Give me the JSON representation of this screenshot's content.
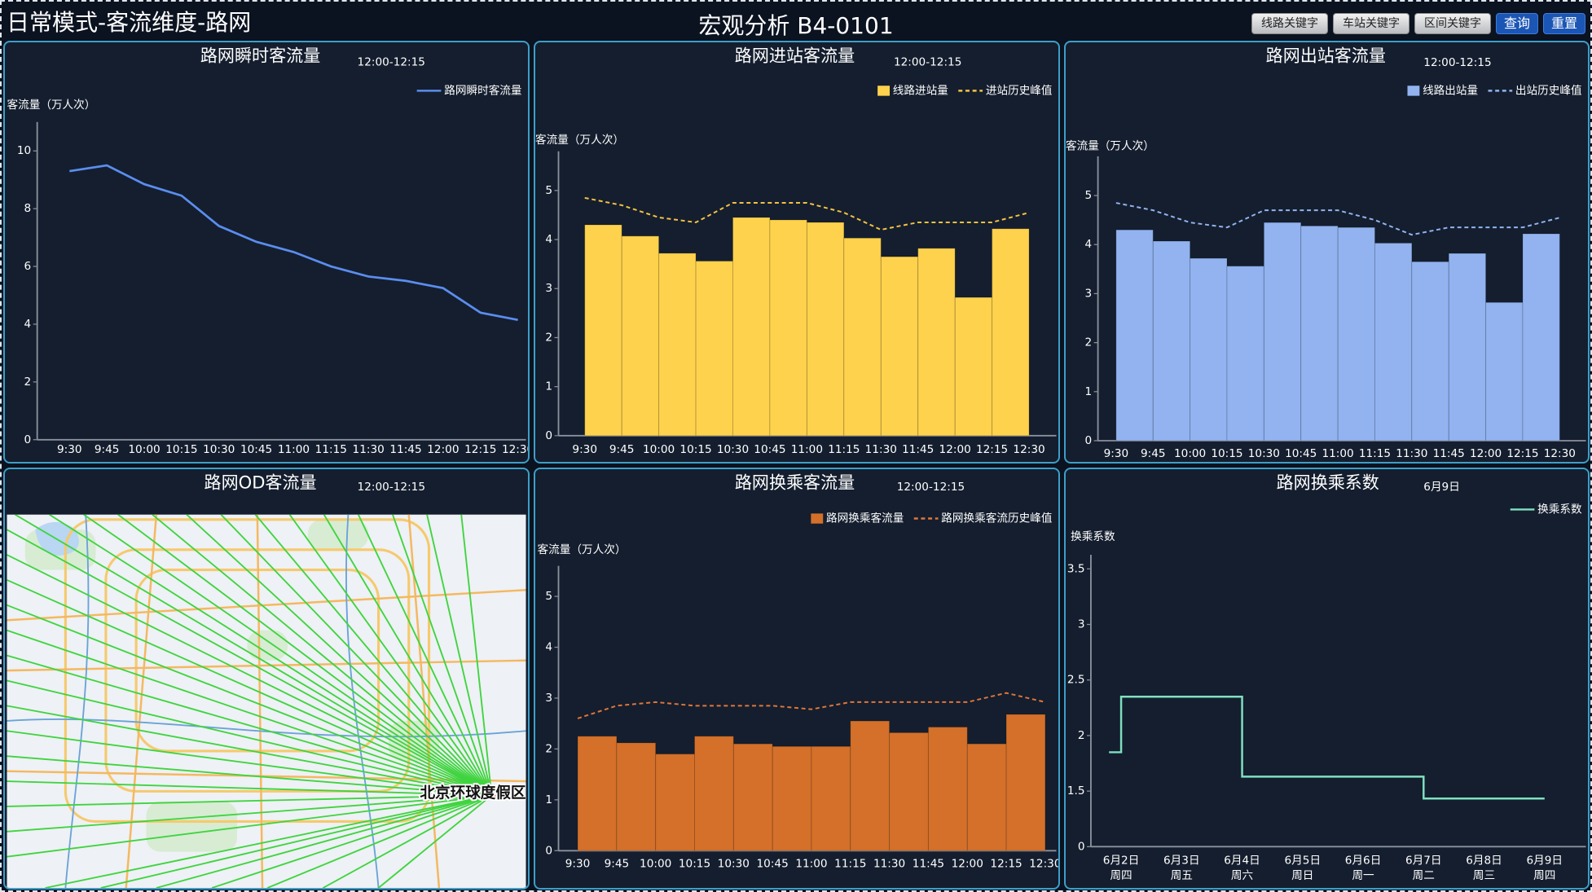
{
  "header": {
    "title": "日常模式-客流维度-路网",
    "center_title": "宏观分析 B4-0101",
    "buttons": [
      "线路关键字",
      "车站关键字",
      "区间关键字",
      "查询",
      "重置"
    ]
  },
  "chart_data": [
    {
      "type": "line",
      "title": "路网瞬时客流量",
      "subtitle": "12:00-12:15",
      "y_label": "客流量（万人次）",
      "categories": [
        "9:30",
        "9:45",
        "10:00",
        "10:15",
        "10:30",
        "10:45",
        "11:00",
        "11:15",
        "11:30",
        "11:45",
        "12:00",
        "12:15",
        "12:30"
      ],
      "series": [
        {
          "name": "路网瞬时客流量",
          "color": "#5b8def",
          "kind": "line",
          "values": [
            9.3,
            9.5,
            8.85,
            8.45,
            7.4,
            6.85,
            6.5,
            6.0,
            5.65,
            5.5,
            5.25,
            4.4,
            4.15
          ]
        }
      ],
      "ylim": [
        0,
        11
      ],
      "yticks": [
        0,
        2,
        4,
        6,
        8,
        10
      ],
      "legend": "upper right"
    },
    {
      "type": "bar",
      "title": "路网进站客流量",
      "subtitle": "12:00-12:15",
      "y_label": "客流量（万人次）",
      "categories": [
        "9:30",
        "9:45",
        "10:00",
        "10:15",
        "10:30",
        "10:45",
        "11:00",
        "11:15",
        "11:30",
        "11:45",
        "12:00",
        "12:15",
        "12:30"
      ],
      "series": [
        {
          "name": "线路进站量",
          "color": "#ffd24d",
          "kind": "bar",
          "values": [
            4.3,
            4.07,
            3.72,
            3.56,
            4.45,
            4.4,
            4.35,
            4.03,
            3.65,
            3.82,
            2.82,
            4.22,
            null
          ]
        },
        {
          "name": "进站历史峰值",
          "color": "#f5c242",
          "kind": "line",
          "dashed": true,
          "values": [
            4.85,
            4.7,
            4.45,
            4.35,
            4.75,
            4.75,
            4.75,
            4.55,
            4.2,
            4.35,
            4.35,
            4.35,
            4.55
          ]
        }
      ],
      "ylim": [
        0,
        5.8
      ],
      "yticks": [
        0,
        1,
        2,
        3,
        4,
        5
      ],
      "legend": "upper right"
    },
    {
      "type": "bar",
      "title": "路网出站客流量",
      "subtitle": "12:00-12:15",
      "y_label": "客流量（万人次）",
      "categories": [
        "9:30",
        "9:45",
        "10:00",
        "10:15",
        "10:30",
        "10:45",
        "11:00",
        "11:15",
        "11:30",
        "11:45",
        "12:00",
        "12:15",
        "12:30"
      ],
      "series": [
        {
          "name": "线路出站量",
          "color": "#92b3f0",
          "kind": "bar",
          "values": [
            4.3,
            4.07,
            3.72,
            3.56,
            4.45,
            4.38,
            4.35,
            4.03,
            3.65,
            3.82,
            2.82,
            4.22,
            null
          ]
        },
        {
          "name": "出站历史峰值",
          "color": "#92b3f0",
          "kind": "line",
          "dashed": true,
          "values": [
            4.85,
            4.7,
            4.45,
            4.35,
            4.7,
            4.7,
            4.7,
            4.5,
            4.2,
            4.35,
            4.35,
            4.35,
            4.55
          ]
        }
      ],
      "ylim": [
        0,
        5.8
      ],
      "yticks": [
        0,
        1,
        2,
        3,
        4,
        5
      ],
      "legend": "upper right"
    },
    {
      "type": "map",
      "title": "路网OD客流量",
      "subtitle": "12:00-12:15",
      "labels": [
        "北京环球度假区"
      ]
    },
    {
      "type": "bar",
      "title": "路网换乘客流量",
      "subtitle": "12:00-12:15",
      "y_label": "客流量（万人次）",
      "categories": [
        "9:30",
        "9:45",
        "10:00",
        "10:15",
        "10:30",
        "10:45",
        "11:00",
        "11:15",
        "11:30",
        "11:45",
        "12:00",
        "12:15",
        "12:30"
      ],
      "series": [
        {
          "name": "路网换乘客流量",
          "color": "#d4702a",
          "kind": "bar",
          "values": [
            2.25,
            2.12,
            1.9,
            2.25,
            2.1,
            2.05,
            2.05,
            2.55,
            2.32,
            2.43,
            2.1,
            2.68,
            null
          ]
        },
        {
          "name": "路网换乘客流历史峰值",
          "color": "#e0763a",
          "kind": "line",
          "dashed": true,
          "values": [
            2.6,
            2.85,
            2.92,
            2.85,
            2.85,
            2.85,
            2.78,
            2.92,
            2.92,
            2.92,
            2.92,
            3.1,
            2.92
          ]
        }
      ],
      "ylim": [
        0,
        5.6
      ],
      "yticks": [
        0,
        1,
        2,
        3,
        4,
        5
      ],
      "legend": "upper right"
    },
    {
      "type": "step",
      "title": "路网换乘系数",
      "subtitle": "6月9日",
      "y_label": "换乘系数",
      "categories": [
        "6月2日",
        "6月3日",
        "6月4日",
        "6月5日",
        "6月6日",
        "6月7日",
        "6月8日",
        "6月9日"
      ],
      "category_sublabels": [
        "周四",
        "周五",
        "周六",
        "周日",
        "周一",
        "周二",
        "周三",
        "周四"
      ],
      "series": [
        {
          "name": "换乘系数",
          "color": "#7fe0c0",
          "kind": "line",
          "values": [
            1.85,
            2.35,
            2.35,
            1.63,
            1.63,
            1.63,
            1.3,
            1.3
          ]
        }
      ],
      "ylim": [
        0,
        3.5
      ],
      "yticks": [
        0,
        1.5,
        2,
        2.5,
        3,
        3.5
      ],
      "y_scale": "segmented",
      "legend": "upper right"
    }
  ]
}
